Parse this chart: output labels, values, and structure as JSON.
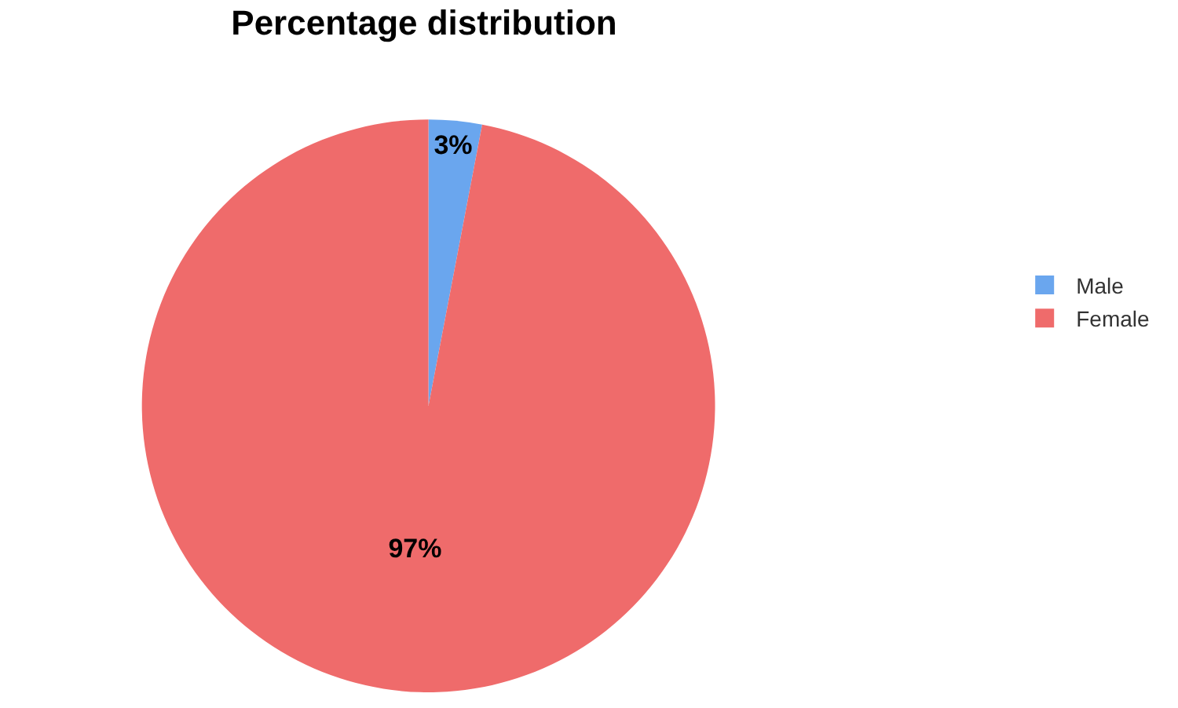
{
  "chart_data": {
    "type": "pie",
    "title": "Percentage distribution",
    "categories": [
      "Male",
      "Female"
    ],
    "values": [
      3,
      97
    ],
    "colors": [
      "#6aa6ee",
      "#ef6b6b"
    ],
    "value_labels": [
      "3%",
      "97%"
    ],
    "legend": "right"
  }
}
